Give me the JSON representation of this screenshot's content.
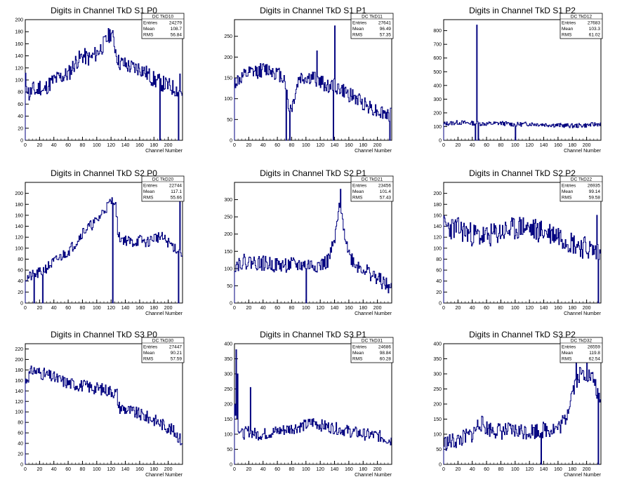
{
  "chart_data": [
    {
      "type": "bar",
      "title": "Digits in Channel TkD S1 P0",
      "xlabel": "Channel Number",
      "ylabel": "",
      "xlim": [
        0,
        220
      ],
      "ylim": [
        0,
        200
      ],
      "xticks": [
        0,
        20,
        40,
        60,
        80,
        100,
        120,
        140,
        160,
        180,
        200
      ],
      "yticks": [
        0,
        20,
        40,
        60,
        80,
        100,
        120,
        140,
        160,
        180,
        200
      ],
      "stats": {
        "name": "DC_TkD10",
        "entries": "24279",
        "mean": "108.7",
        "rms": "56.84"
      },
      "profile": [
        [
          0,
          100
        ],
        [
          5,
          75
        ],
        [
          10,
          85
        ],
        [
          15,
          80
        ],
        [
          20,
          90
        ],
        [
          25,
          80
        ],
        [
          30,
          90
        ],
        [
          40,
          100
        ],
        [
          50,
          105
        ],
        [
          60,
          110
        ],
        [
          70,
          130
        ],
        [
          80,
          140
        ],
        [
          90,
          135
        ],
        [
          100,
          145
        ],
        [
          110,
          160
        ],
        [
          120,
          180
        ],
        [
          130,
          130
        ],
        [
          140,
          125
        ],
        [
          150,
          120
        ],
        [
          160,
          120
        ],
        [
          170,
          110
        ],
        [
          180,
          100
        ],
        [
          190,
          95
        ],
        [
          200,
          90
        ],
        [
          210,
          85
        ],
        [
          218,
          80
        ]
      ],
      "spikes": [
        [
          188,
          0
        ],
        [
          214,
          0
        ],
        [
          216,
          110
        ]
      ],
      "noise": 14,
      "seed": 11
    },
    {
      "type": "bar",
      "title": "Digits in Channel TkD S1 P1",
      "xlabel": "Channel Number",
      "ylabel": "",
      "xlim": [
        0,
        220
      ],
      "ylim": [
        0,
        290
      ],
      "xticks": [
        0,
        20,
        40,
        60,
        80,
        100,
        120,
        140,
        160,
        180,
        200
      ],
      "yticks": [
        0,
        50,
        100,
        150,
        200,
        250
      ],
      "stats": {
        "name": "DC_TkD11",
        "entries": "27641",
        "mean": "96.49",
        "rms": "57.35"
      },
      "profile": [
        [
          0,
          140
        ],
        [
          10,
          150
        ],
        [
          20,
          160
        ],
        [
          30,
          165
        ],
        [
          40,
          170
        ],
        [
          50,
          170
        ],
        [
          60,
          160
        ],
        [
          70,
          150
        ],
        [
          75,
          80
        ],
        [
          80,
          80
        ],
        [
          90,
          150
        ],
        [
          100,
          150
        ],
        [
          110,
          150
        ],
        [
          120,
          140
        ],
        [
          130,
          130
        ],
        [
          140,
          130
        ],
        [
          150,
          120
        ],
        [
          160,
          110
        ],
        [
          170,
          100
        ],
        [
          180,
          90
        ],
        [
          190,
          80
        ],
        [
          200,
          70
        ],
        [
          210,
          65
        ],
        [
          218,
          60
        ]
      ],
      "spikes": [
        [
          72,
          0
        ],
        [
          77,
          0
        ],
        [
          115,
          215
        ],
        [
          138,
          0
        ],
        [
          140,
          275
        ],
        [
          217,
          0
        ]
      ],
      "noise": 18,
      "seed": 12
    },
    {
      "type": "bar",
      "title": "Digits in Channel TkD S1 P2",
      "xlabel": "Channel Number",
      "ylabel": "",
      "xlim": [
        0,
        220
      ],
      "ylim": [
        0,
        880
      ],
      "xticks": [
        0,
        20,
        40,
        60,
        80,
        100,
        120,
        140,
        160,
        180,
        200
      ],
      "yticks": [
        0,
        100,
        200,
        300,
        400,
        500,
        600,
        700,
        800
      ],
      "stats": {
        "name": "DC_TkD12",
        "entries": "27683",
        "mean": "103.3",
        "rms": "61.02"
      },
      "profile": [
        [
          0,
          120
        ],
        [
          20,
          130
        ],
        [
          40,
          125
        ],
        [
          60,
          120
        ],
        [
          80,
          125
        ],
        [
          100,
          115
        ],
        [
          120,
          120
        ],
        [
          140,
          115
        ],
        [
          160,
          110
        ],
        [
          180,
          105
        ],
        [
          200,
          110
        ],
        [
          218,
          120
        ]
      ],
      "spikes": [
        [
          44,
          0
        ],
        [
          46,
          840
        ],
        [
          48,
          0
        ],
        [
          100,
          0
        ]
      ],
      "noise": 16,
      "seed": 13
    },
    {
      "type": "bar",
      "title": "Digits in Channel TkD S2 P0",
      "xlabel": "Channel Number",
      "ylabel": "",
      "xlim": [
        0,
        220
      ],
      "ylim": [
        0,
        220
      ],
      "xticks": [
        0,
        20,
        40,
        60,
        80,
        100,
        120,
        140,
        160,
        180,
        200
      ],
      "yticks": [
        0,
        20,
        40,
        60,
        80,
        100,
        120,
        140,
        160,
        180,
        200
      ],
      "stats": {
        "name": "DC_TkD20",
        "entries": "22744",
        "mean": "117.1",
        "rms": "55.66"
      },
      "profile": [
        [
          0,
          45
        ],
        [
          10,
          50
        ],
        [
          20,
          55
        ],
        [
          30,
          65
        ],
        [
          40,
          75
        ],
        [
          50,
          85
        ],
        [
          60,
          95
        ],
        [
          70,
          110
        ],
        [
          80,
          130
        ],
        [
          90,
          140
        ],
        [
          100,
          150
        ],
        [
          110,
          170
        ],
        [
          120,
          185
        ],
        [
          125,
          190
        ],
        [
          130,
          120
        ],
        [
          140,
          115
        ],
        [
          150,
          110
        ],
        [
          160,
          115
        ],
        [
          170,
          110
        ],
        [
          180,
          120
        ],
        [
          190,
          120
        ],
        [
          200,
          110
        ],
        [
          210,
          100
        ],
        [
          218,
          90
        ]
      ],
      "spikes": [
        [
          12,
          0
        ],
        [
          24,
          0
        ],
        [
          122,
          0
        ],
        [
          214,
          0
        ],
        [
          216,
          185
        ]
      ],
      "noise": 10,
      "seed": 21
    },
    {
      "type": "bar",
      "title": "Digits in Channel TkD S2 P1",
      "xlabel": "Channel Number",
      "ylabel": "",
      "xlim": [
        0,
        220
      ],
      "ylim": [
        0,
        350
      ],
      "xticks": [
        0,
        20,
        40,
        60,
        80,
        100,
        120,
        140,
        160,
        180,
        200
      ],
      "yticks": [
        0,
        50,
        100,
        150,
        200,
        250,
        300
      ],
      "stats": {
        "name": "DC_TkD21",
        "entries": "23456",
        "mean": "101.4",
        "rms": "57.43"
      },
      "profile": [
        [
          0,
          110
        ],
        [
          10,
          120
        ],
        [
          20,
          120
        ],
        [
          40,
          115
        ],
        [
          60,
          110
        ],
        [
          80,
          110
        ],
        [
          100,
          110
        ],
        [
          120,
          110
        ],
        [
          130,
          120
        ],
        [
          140,
          180
        ],
        [
          145,
          260
        ],
        [
          150,
          250
        ],
        [
          160,
          140
        ],
        [
          170,
          110
        ],
        [
          180,
          100
        ],
        [
          190,
          85
        ],
        [
          200,
          70
        ],
        [
          210,
          55
        ],
        [
          218,
          40
        ]
      ],
      "spikes": [
        [
          100,
          0
        ],
        [
          146,
          290
        ],
        [
          148,
          330
        ]
      ],
      "noise": 22,
      "seed": 22
    },
    {
      "type": "bar",
      "title": "Digits in Channel TkD S2 P2",
      "xlabel": "Channel Number",
      "ylabel": "",
      "xlim": [
        0,
        220
      ],
      "ylim": [
        0,
        220
      ],
      "xticks": [
        0,
        20,
        40,
        60,
        80,
        100,
        120,
        140,
        160,
        180,
        200
      ],
      "yticks": [
        0,
        20,
        40,
        60,
        80,
        100,
        120,
        140,
        160,
        180,
        200
      ],
      "stats": {
        "name": "DC_TkD22",
        "entries": "26935",
        "mean": "99.14",
        "rms": "59.58"
      },
      "profile": [
        [
          0,
          140
        ],
        [
          20,
          135
        ],
        [
          40,
          125
        ],
        [
          60,
          120
        ],
        [
          80,
          130
        ],
        [
          100,
          135
        ],
        [
          110,
          140
        ],
        [
          120,
          135
        ],
        [
          140,
          130
        ],
        [
          160,
          125
        ],
        [
          180,
          110
        ],
        [
          200,
          100
        ],
        [
          210,
          95
        ],
        [
          218,
          90
        ]
      ],
      "spikes": [
        [
          214,
          160
        ],
        [
          216,
          0
        ]
      ],
      "noise": 22,
      "seed": 23
    },
    {
      "type": "bar",
      "title": "Digits in Channel TkD S3 P0",
      "xlabel": "Channel Number",
      "ylabel": "",
      "xlim": [
        0,
        220
      ],
      "ylim": [
        0,
        230
      ],
      "xticks": [
        0,
        20,
        40,
        60,
        80,
        100,
        120,
        140,
        160,
        180,
        200
      ],
      "yticks": [
        0,
        20,
        40,
        60,
        80,
        100,
        120,
        140,
        160,
        180,
        200,
        220
      ],
      "stats": {
        "name": "DC_TkD30",
        "entries": "27447",
        "mean": "90.21",
        "rms": "57.59"
      },
      "profile": [
        [
          0,
          160
        ],
        [
          10,
          180
        ],
        [
          20,
          175
        ],
        [
          30,
          170
        ],
        [
          40,
          165
        ],
        [
          50,
          160
        ],
        [
          60,
          155
        ],
        [
          80,
          150
        ],
        [
          100,
          145
        ],
        [
          120,
          140
        ],
        [
          128,
          135
        ],
        [
          130,
          110
        ],
        [
          140,
          105
        ],
        [
          160,
          95
        ],
        [
          180,
          85
        ],
        [
          200,
          70
        ],
        [
          210,
          60
        ],
        [
          218,
          45
        ]
      ],
      "spikes": [],
      "noise": 12,
      "seed": 31
    },
    {
      "type": "bar",
      "title": "Digits in Channel TkD S3 P1",
      "xlabel": "Channel Number",
      "ylabel": "",
      "xlim": [
        0,
        220
      ],
      "ylim": [
        0,
        400
      ],
      "xticks": [
        0,
        20,
        40,
        60,
        80,
        100,
        120,
        140,
        160,
        180,
        200
      ],
      "yticks": [
        0,
        50,
        100,
        150,
        200,
        250,
        300,
        350,
        400
      ],
      "stats": {
        "name": "DC_TkD31",
        "entries": "24686",
        "mean": "98.84",
        "rms": "60.28"
      },
      "profile": [
        [
          0,
          200
        ],
        [
          4,
          130
        ],
        [
          10,
          100
        ],
        [
          20,
          110
        ],
        [
          30,
          100
        ],
        [
          40,
          100
        ],
        [
          60,
          110
        ],
        [
          80,
          120
        ],
        [
          100,
          130
        ],
        [
          110,
          140
        ],
        [
          120,
          130
        ],
        [
          140,
          120
        ],
        [
          160,
          110
        ],
        [
          180,
          100
        ],
        [
          200,
          95
        ],
        [
          218,
          80
        ]
      ],
      "spikes": [
        [
          2,
          380
        ],
        [
          4,
          300
        ],
        [
          22,
          255
        ]
      ],
      "noise": 20,
      "seed": 32
    },
    {
      "type": "bar",
      "title": "Digits in Channel TkD S3 P2",
      "xlabel": "Channel Number",
      "ylabel": "",
      "xlim": [
        0,
        220
      ],
      "ylim": [
        0,
        400
      ],
      "xticks": [
        0,
        20,
        40,
        60,
        80,
        100,
        120,
        140,
        160,
        180,
        200
      ],
      "yticks": [
        0,
        50,
        100,
        150,
        200,
        250,
        300,
        350,
        400
      ],
      "stats": {
        "name": "DC_TkD32",
        "entries": "26559",
        "mean": "119.8",
        "rms": "62.54"
      },
      "profile": [
        [
          0,
          70
        ],
        [
          20,
          80
        ],
        [
          40,
          100
        ],
        [
          50,
          140
        ],
        [
          60,
          120
        ],
        [
          80,
          110
        ],
        [
          100,
          110
        ],
        [
          120,
          110
        ],
        [
          140,
          115
        ],
        [
          160,
          120
        ],
        [
          170,
          150
        ],
        [
          180,
          250
        ],
        [
          190,
          300
        ],
        [
          200,
          300
        ],
        [
          210,
          280
        ],
        [
          218,
          200
        ]
      ],
      "spikes": [
        [
          136,
          0
        ],
        [
          185,
          350
        ],
        [
          200,
          380
        ],
        [
          216,
          0
        ]
      ],
      "noise": 28,
      "seed": 33
    }
  ],
  "labels": {
    "entries": "Entries",
    "mean": "Mean",
    "rms": "RMS"
  },
  "colors": {
    "line": "#00007f",
    "axis": "#000000",
    "background": "#ffffff"
  }
}
